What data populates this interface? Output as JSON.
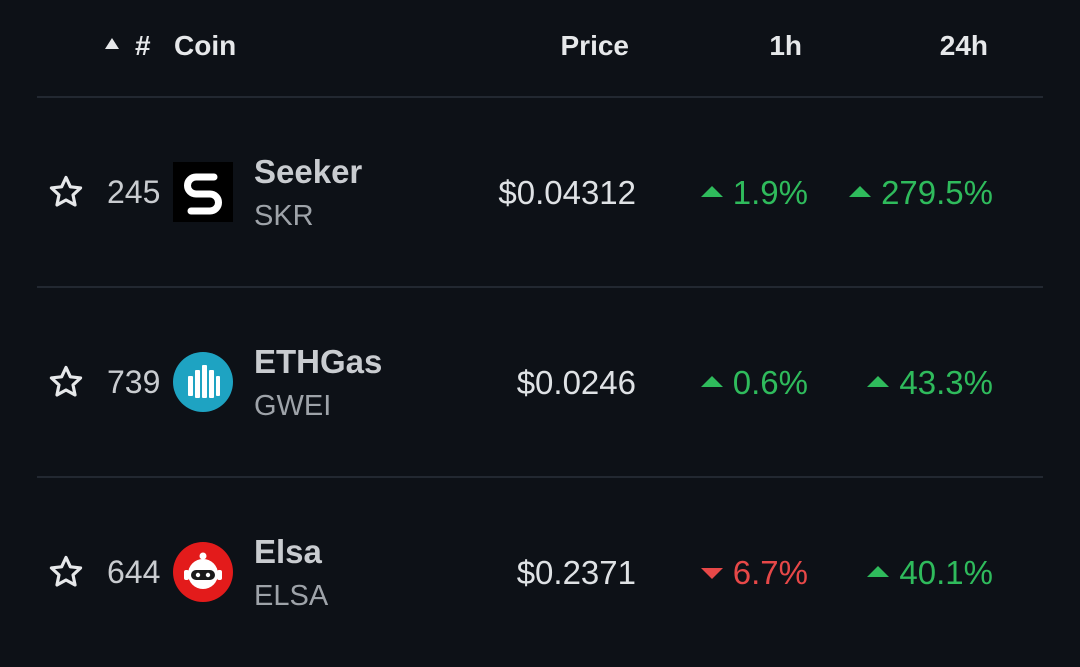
{
  "header": {
    "sort_direction": "ascending",
    "rank_label": "#",
    "coin_label": "Coin",
    "price_label": "Price",
    "h1_label": "1h",
    "h24_label": "24h"
  },
  "colors": {
    "background": "#0d1117",
    "positive": "#2fbb5c",
    "negative": "#e74848",
    "divider": "#222831"
  },
  "rows": [
    {
      "rank": "245",
      "name": "Seeker",
      "symbol": "SKR",
      "logo_icon": "seeker-logo-icon",
      "price": "$0.04312",
      "change_1h": "1.9%",
      "change_1h_direction": "up",
      "change_24h": "279.5%",
      "change_24h_direction": "up"
    },
    {
      "rank": "739",
      "name": "ETHGas",
      "symbol": "GWEI",
      "logo_icon": "ethgas-logo-icon",
      "price": "$0.0246",
      "change_1h": "0.6%",
      "change_1h_direction": "up",
      "change_24h": "43.3%",
      "change_24h_direction": "up"
    },
    {
      "rank": "644",
      "name": "Elsa",
      "symbol": "ELSA",
      "logo_icon": "elsa-logo-icon",
      "price": "$0.2371",
      "change_1h": "6.7%",
      "change_1h_direction": "down",
      "change_24h": "40.1%",
      "change_24h_direction": "up"
    }
  ]
}
